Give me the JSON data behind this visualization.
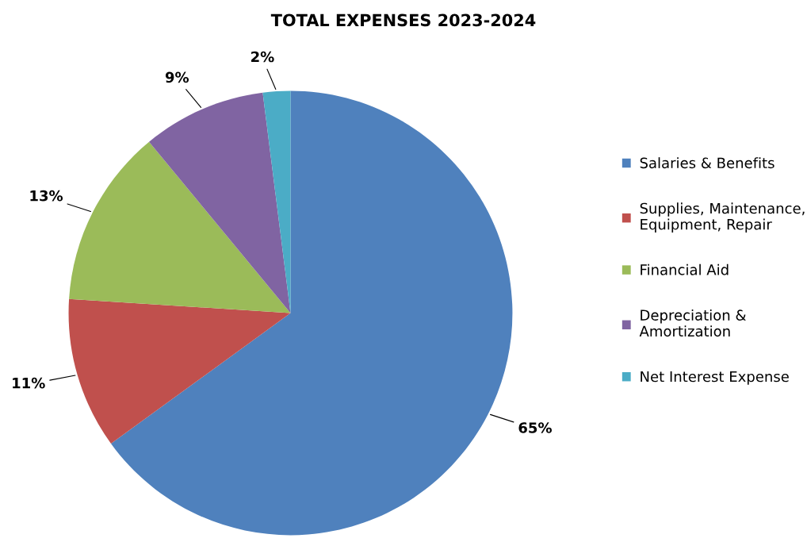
{
  "chart_data": {
    "type": "pie",
    "title": "TOTAL EXPENSES 2023-2024",
    "categories": [
      "Salaries & Benefits",
      "Supplies, Maintenance,\nEquipment, Repair",
      "Financial Aid",
      "Depreciation &\nAmortization",
      "Net Interest Expense"
    ],
    "values": [
      65,
      11,
      13,
      9,
      2
    ],
    "value_labels": [
      "65%",
      "11%",
      "13%",
      "9%",
      "2%"
    ],
    "colors": [
      "#4f81bd",
      "#c0504d",
      "#9bbb59",
      "#8064a2",
      "#4bacc6"
    ],
    "legend": "right"
  }
}
